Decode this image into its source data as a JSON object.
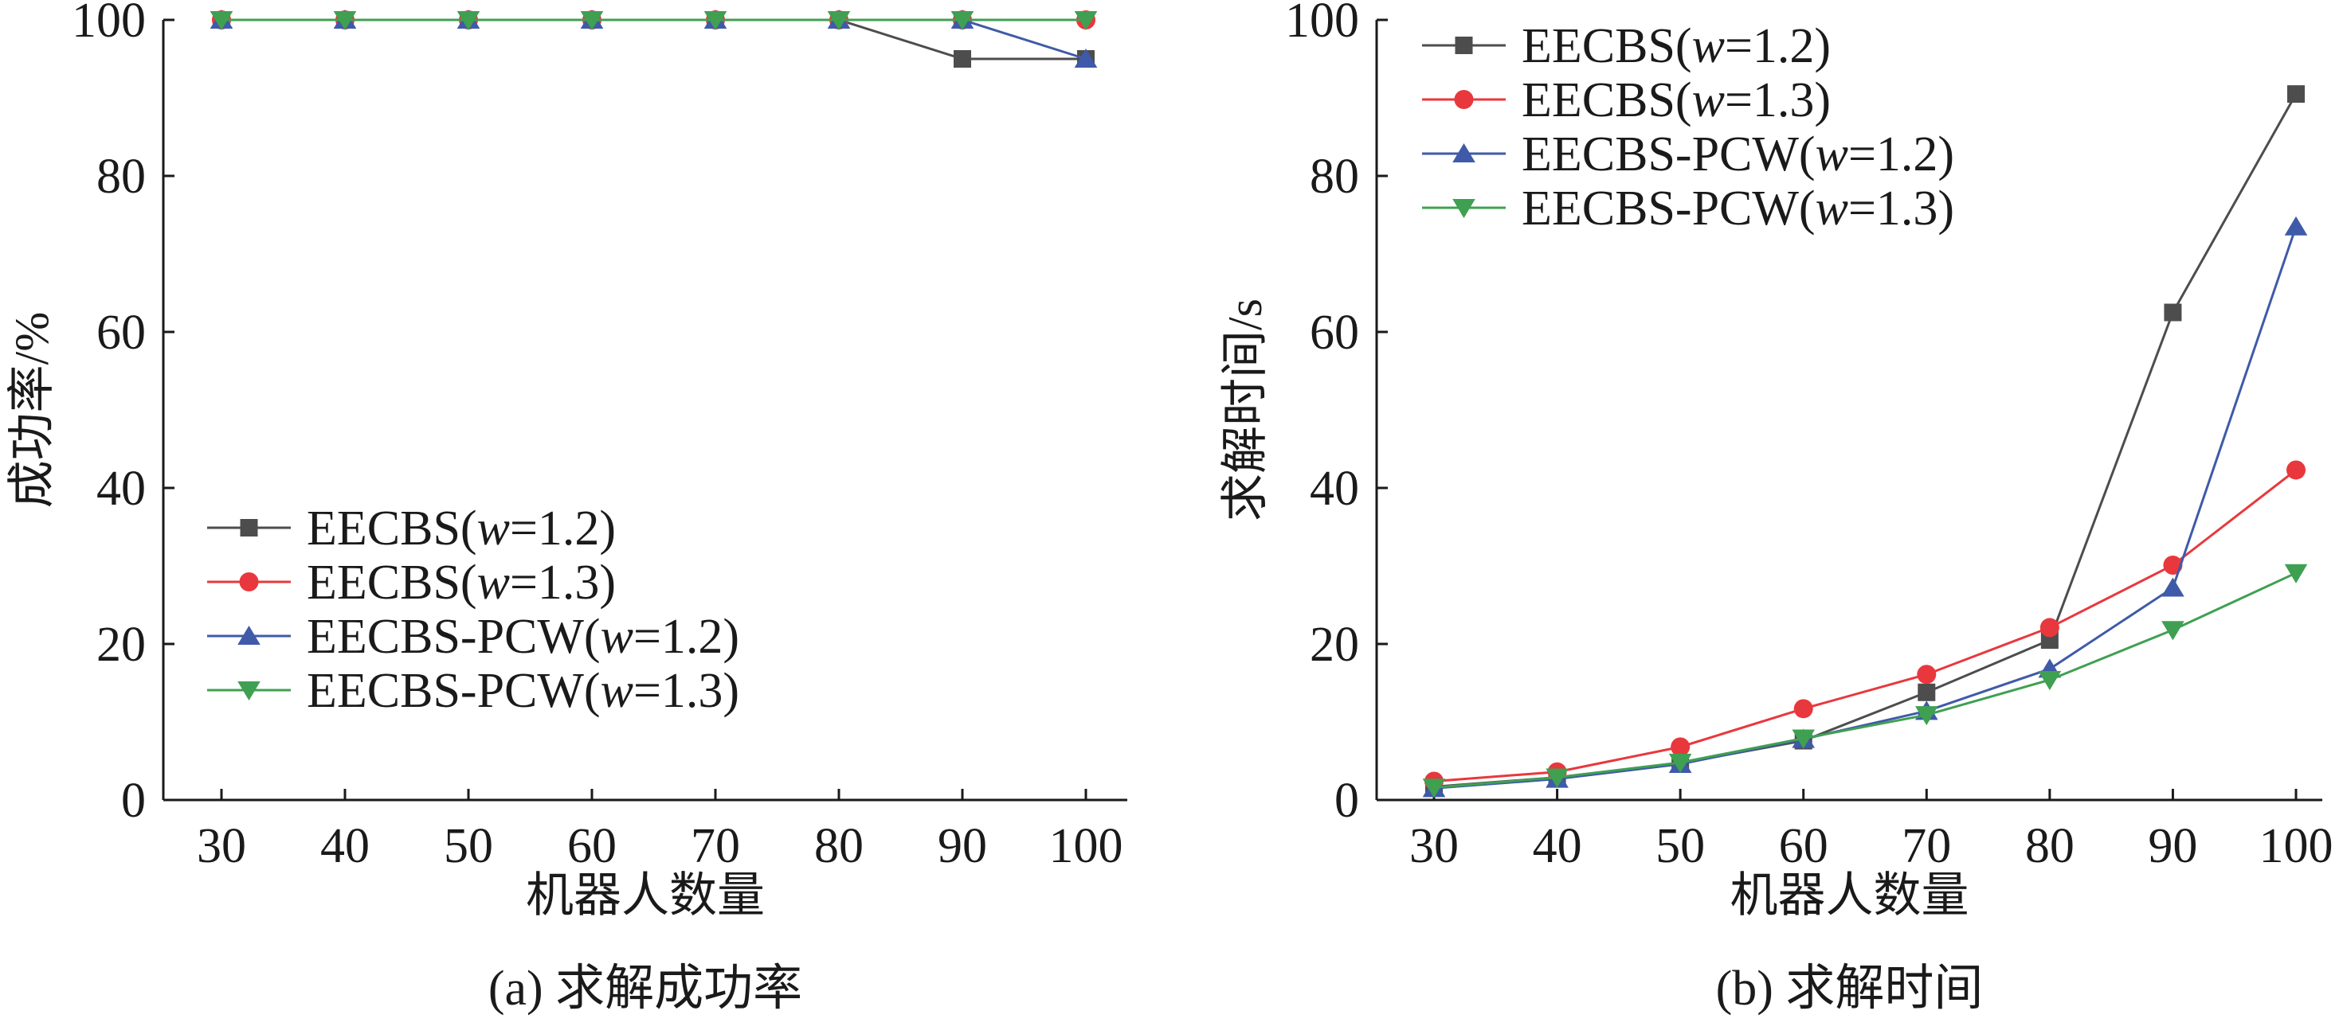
{
  "chart_data": [
    {
      "type": "line",
      "caption": "(a) 求解成功率",
      "xlabel": "机器人数量",
      "ylabel": "成功率/%",
      "x": [
        30,
        40,
        50,
        60,
        70,
        80,
        90,
        100
      ],
      "xticks": [
        "30",
        "40",
        "50",
        "60",
        "70",
        "80",
        "90",
        "100"
      ],
      "ylim": [
        0,
        100
      ],
      "yticks": [
        "0",
        "20",
        "40",
        "60",
        "80",
        "100"
      ],
      "legend_position": "bottom-left",
      "series": [
        {
          "name": "EECBS(w=1.2)",
          "name_prefix": "EECBS(",
          "name_var": "w",
          "name_suffix": "=1.2)",
          "color": "#4d4d4d",
          "marker": "square",
          "values": [
            100,
            100,
            100,
            100,
            100,
            100,
            95,
            95
          ]
        },
        {
          "name": "EECBS(w=1.3)",
          "name_prefix": "EECBS(",
          "name_var": "w",
          "name_suffix": "=1.3)",
          "color": "#e8383d",
          "marker": "circle",
          "values": [
            100,
            100,
            100,
            100,
            100,
            100,
            100,
            100
          ]
        },
        {
          "name": "EECBS-PCW(w=1.2)",
          "name_prefix": "EECBS-PCW(",
          "name_var": "w",
          "name_suffix": "=1.2)",
          "color": "#3f5aa8",
          "marker": "triangle-up",
          "values": [
            100,
            100,
            100,
            100,
            100,
            100,
            100,
            95
          ]
        },
        {
          "name": "EECBS-PCW(w=1.3)",
          "name_prefix": "EECBS-PCW(",
          "name_var": "w",
          "name_suffix": "=1.3)",
          "color": "#3fa052",
          "marker": "triangle-down",
          "values": [
            100,
            100,
            100,
            100,
            100,
            100,
            100,
            100
          ]
        }
      ]
    },
    {
      "type": "line",
      "caption": "(b) 求解时间",
      "xlabel": "机器人数量",
      "ylabel": "求解时间/s",
      "x": [
        30,
        40,
        50,
        60,
        70,
        80,
        90,
        100
      ],
      "xticks": [
        "30",
        "40",
        "50",
        "60",
        "70",
        "80",
        "90",
        "100"
      ],
      "ylim": [
        0,
        100
      ],
      "yticks": [
        "0",
        "20",
        "40",
        "60",
        "80",
        "100"
      ],
      "legend_position": "top-left",
      "series": [
        {
          "name": "EECBS(w=1.2)",
          "name_prefix": "EECBS(",
          "name_var": "w",
          "name_suffix": "=1.2)",
          "color": "#4d4d4d",
          "marker": "square",
          "values": [
            1.7,
            2.9,
            4.7,
            7.6,
            13.8,
            20.5,
            62.5,
            90.5
          ]
        },
        {
          "name": "EECBS(w=1.3)",
          "name_prefix": "EECBS(",
          "name_var": "w",
          "name_suffix": "=1.3)",
          "color": "#e8383d",
          "marker": "circle",
          "values": [
            2.4,
            3.6,
            6.8,
            11.7,
            16.1,
            22.1,
            30.1,
            42.3
          ]
        },
        {
          "name": "EECBS-PCW(w=1.2)",
          "name_prefix": "EECBS-PCW(",
          "name_var": "w",
          "name_suffix": "=1.2)",
          "color": "#3f5aa8",
          "marker": "triangle-up",
          "values": [
            1.5,
            2.7,
            4.6,
            7.8,
            11.4,
            16.8,
            27.2,
            73.5
          ]
        },
        {
          "name": "EECBS-PCW(w=1.3)",
          "name_prefix": "EECBS-PCW(",
          "name_var": "w",
          "name_suffix": "=1.3)",
          "color": "#3fa052",
          "marker": "triangle-down",
          "values": [
            1.6,
            2.9,
            4.8,
            7.9,
            10.9,
            15.4,
            21.8,
            29.1
          ]
        }
      ]
    }
  ]
}
